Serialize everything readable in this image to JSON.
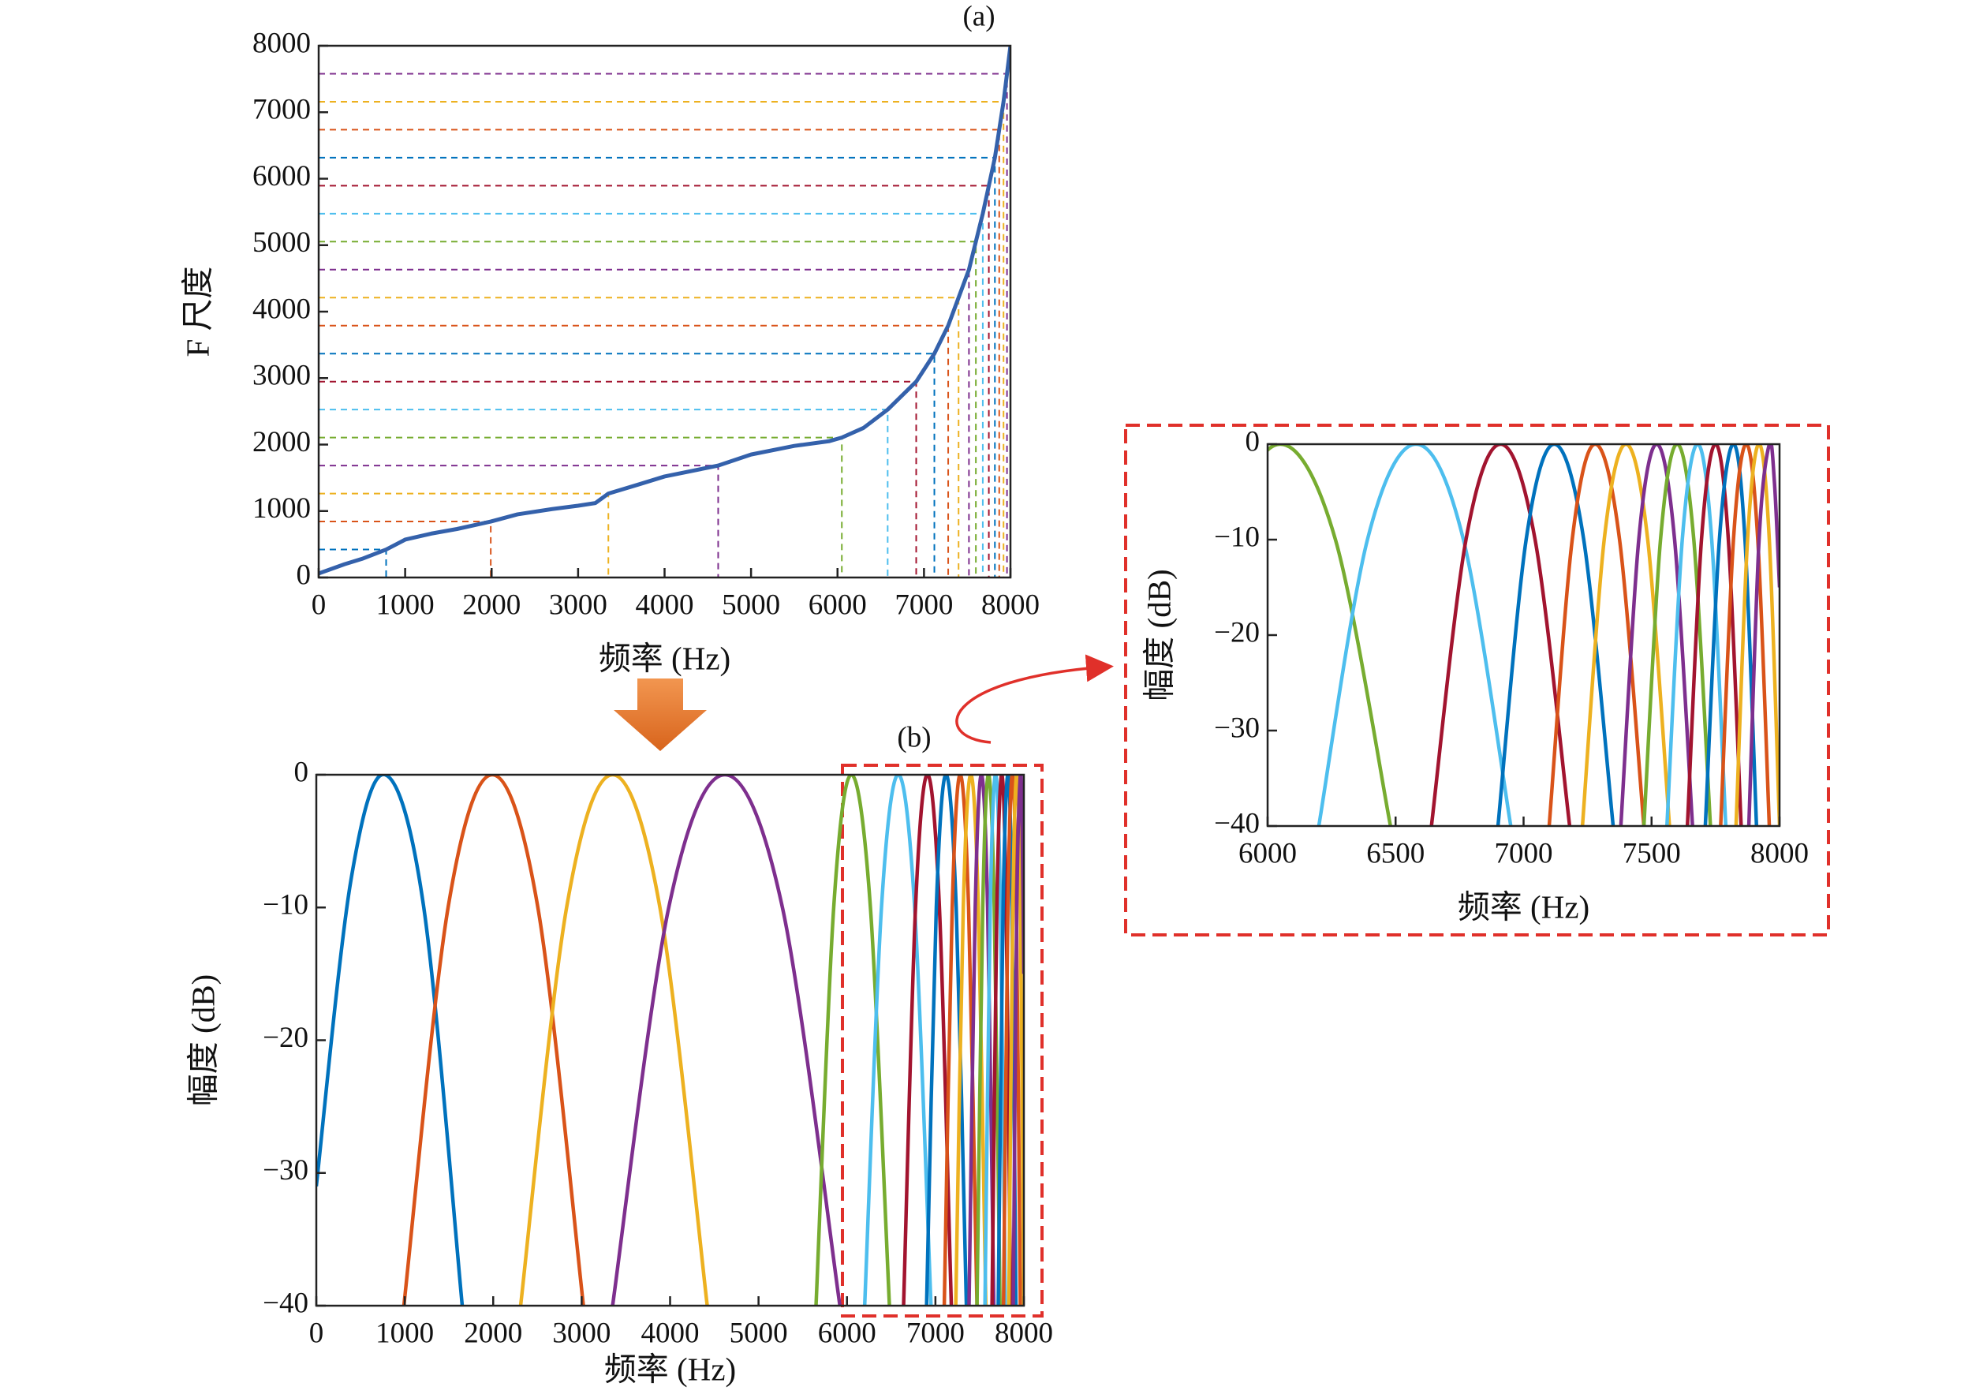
{
  "chart_data": [
    {
      "type": "line",
      "label": "(a)",
      "xlabel": "频率 (Hz)",
      "ylabel": "F 尺度",
      "xlim": [
        0,
        8000
      ],
      "ylim": [
        0,
        8000
      ],
      "xticks": [
        0,
        1000,
        2000,
        3000,
        4000,
        5000,
        6000,
        7000,
        8000
      ],
      "yticks": [
        0,
        1000,
        2000,
        3000,
        4000,
        5000,
        6000,
        7000,
        8000
      ],
      "series": [
        {
          "color": "#3461ab",
          "x": [
            0,
            300,
            500,
            780,
            1000,
            1300,
            1600,
            1990,
            2300,
            2700,
            3000,
            3200,
            3350,
            3700,
            4000,
            4620,
            5000,
            5500,
            5900,
            6050,
            6300,
            6580,
            6910,
            7120,
            7280,
            7400,
            7520,
            7600,
            7680,
            7750,
            7820,
            7870,
            7920,
            7960,
            8000
          ],
          "values": [
            60,
            200,
            280,
            421,
            570,
            660,
            730,
            842,
            950,
            1030,
            1080,
            1120,
            1263,
            1400,
            1520,
            1684,
            1850,
            1980,
            2050,
            2105,
            2250,
            2526,
            2947,
            3368,
            3789,
            4211,
            4632,
            5053,
            5474,
            5895,
            6316,
            6737,
            7158,
            7579,
            8000
          ]
        }
      ],
      "guides": {
        "x": [
          780,
          1990,
          3350,
          4620,
          6050,
          6580,
          6910,
          7120,
          7280,
          7400,
          7520,
          7600,
          7680,
          7750,
          7820,
          7870,
          7920,
          7960
        ],
        "y": [
          421,
          842,
          1263,
          1684,
          2105,
          2526,
          2947,
          3368,
          3789,
          4211,
          4632,
          5053,
          5474,
          5895,
          6316,
          6737,
          7158,
          7579
        ],
        "colors": [
          "#0072BD",
          "#D95319",
          "#EDB120",
          "#7E2F8E",
          "#77AC30",
          "#4DBEEE",
          "#A2142F",
          "#0072BD",
          "#D95319",
          "#EDB120",
          "#7E2F8E",
          "#77AC30",
          "#4DBEEE",
          "#A2142F",
          "#0072BD",
          "#D95319",
          "#EDB120",
          "#7E2F8E"
        ]
      }
    },
    {
      "type": "line",
      "label": "(b)",
      "xlabel": "频率 (Hz)",
      "ylabel": "幅度 (dB)",
      "xlim": [
        0,
        8000
      ],
      "ylim": [
        -40,
        0
      ],
      "xticks": [
        0,
        1000,
        2000,
        3000,
        4000,
        5000,
        6000,
        7000,
        8000
      ],
      "yticks": [
        {
          "value": -40,
          "label": "−40"
        },
        {
          "value": -30,
          "label": "−30"
        },
        {
          "value": -20,
          "label": "−20"
        },
        {
          "value": -10,
          "label": "−10"
        },
        0
      ],
      "series": [
        {
          "color": "#0072BD",
          "x": [
            0,
            390,
            780,
            1215,
            1650
          ],
          "values": [
            -31,
            -8,
            0,
            -10,
            -40
          ]
        },
        {
          "color": "#D95319",
          "x": [
            990,
            1490,
            1990,
            2505,
            3020
          ],
          "values": [
            -40,
            -10,
            0,
            -10,
            -40
          ]
        },
        {
          "color": "#EDB120",
          "x": [
            2310,
            2830,
            3350,
            3885,
            4420
          ],
          "values": [
            -40,
            -10,
            0,
            -10,
            -40
          ]
        },
        {
          "color": "#7E2F8E",
          "x": [
            3350,
            3985,
            4620,
            5270,
            5920
          ],
          "values": [
            -40,
            -10,
            0,
            -10,
            -40
          ]
        },
        {
          "color": "#77AC30",
          "x": [
            5650,
            5850,
            6050,
            6265,
            6480
          ],
          "values": [
            -40,
            -10,
            0,
            -10,
            -40
          ]
        },
        {
          "color": "#4DBEEE",
          "x": [
            6200,
            6390,
            6580,
            6765,
            6950
          ],
          "values": [
            -40,
            -10,
            0,
            -10,
            -40
          ]
        },
        {
          "color": "#A2142F",
          "x": [
            6640,
            6775,
            6910,
            7045,
            7180
          ],
          "values": [
            -40,
            -10,
            0,
            -10,
            -40
          ]
        },
        {
          "color": "#0072BD",
          "x": [
            6900,
            7010,
            7120,
            7235,
            7350
          ],
          "values": [
            -40,
            -10,
            0,
            -10,
            -40
          ]
        },
        {
          "color": "#D95319",
          "x": [
            7100,
            7190,
            7280,
            7375,
            7470
          ],
          "values": [
            -40,
            -10,
            0,
            -10,
            -40
          ]
        },
        {
          "color": "#EDB120",
          "x": [
            7230,
            7315,
            7400,
            7485,
            7570
          ],
          "values": [
            -40,
            -10,
            0,
            -10,
            -40
          ]
        },
        {
          "color": "#7E2F8E",
          "x": [
            7380,
            7450,
            7520,
            7590,
            7660
          ],
          "values": [
            -40,
            -10,
            0,
            -10,
            -40
          ]
        },
        {
          "color": "#77AC30",
          "x": [
            7470,
            7535,
            7600,
            7665,
            7730
          ],
          "values": [
            -40,
            -10,
            0,
            -10,
            -40
          ]
        },
        {
          "color": "#4DBEEE",
          "x": [
            7560,
            7620,
            7680,
            7735,
            7790
          ],
          "values": [
            -40,
            -10,
            0,
            -10,
            -40
          ]
        },
        {
          "color": "#A2142F",
          "x": [
            7640,
            7695,
            7750,
            7800,
            7850
          ],
          "values": [
            -40,
            -10,
            0,
            -10,
            -40
          ]
        },
        {
          "color": "#0072BD",
          "x": [
            7710,
            7765,
            7820,
            7865,
            7910
          ],
          "values": [
            -40,
            -10,
            0,
            -10,
            -40
          ]
        },
        {
          "color": "#D95319",
          "x": [
            7770,
            7820,
            7870,
            7915,
            7960
          ],
          "values": [
            -40,
            -10,
            0,
            -10,
            -40
          ]
        },
        {
          "color": "#EDB120",
          "x": [
            7830,
            7875,
            7920,
            7960,
            8000
          ],
          "values": [
            -40,
            -10,
            0,
            -10,
            -40
          ]
        },
        {
          "color": "#7E2F8E",
          "x": [
            7880,
            7920,
            7960,
            7980,
            8000
          ],
          "values": [
            -40,
            -10,
            0,
            -4,
            -15
          ]
        }
      ],
      "inset": {
        "xlabel": "频率 (Hz)",
        "ylabel": "幅度 (dB)",
        "xlim": [
          6000,
          8000
        ],
        "ylim": [
          -40,
          0
        ],
        "xticks": [
          6000,
          6500,
          7000,
          7500,
          8000
        ],
        "yticks": [
          {
            "value": -40,
            "label": "−40"
          },
          {
            "value": -30,
            "label": "−30"
          },
          {
            "value": -20,
            "label": "−20"
          },
          {
            "value": -10,
            "label": "−10"
          },
          0
        ]
      }
    }
  ]
}
